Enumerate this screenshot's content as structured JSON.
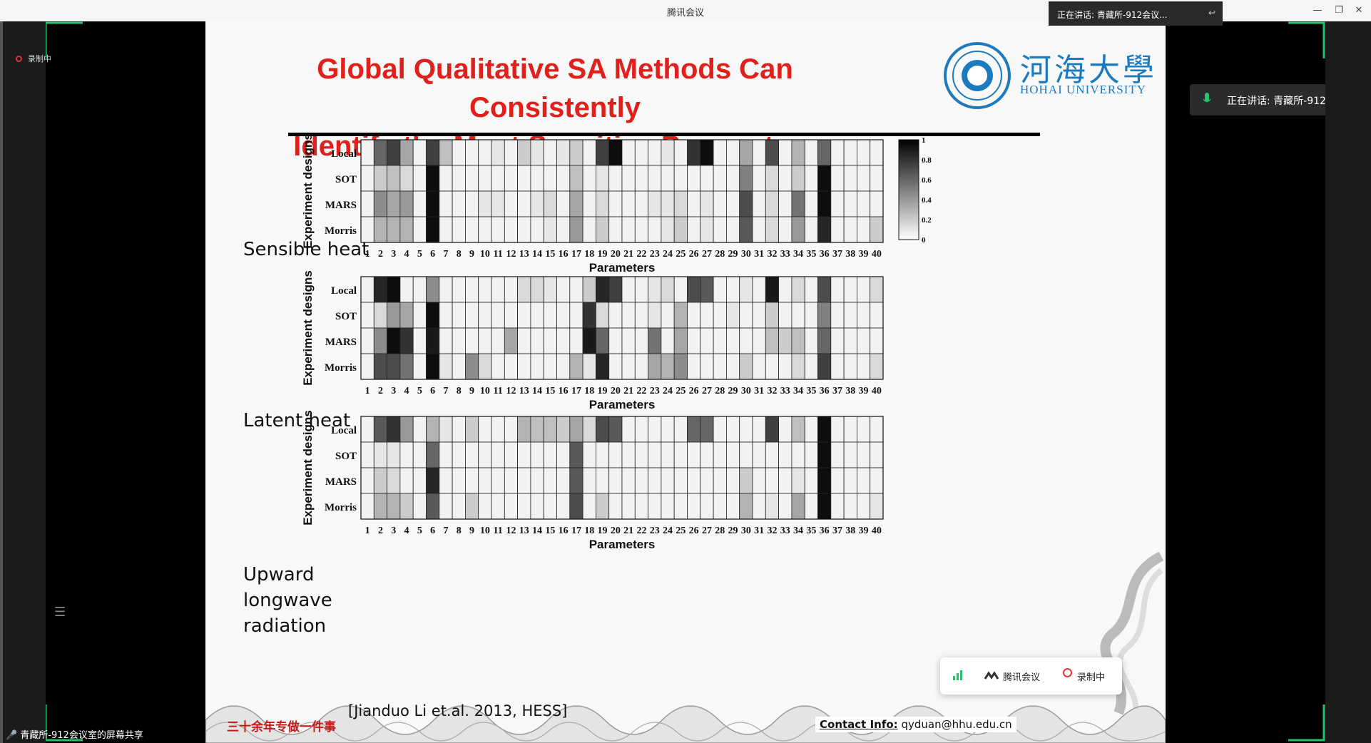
{
  "window": {
    "title": "腾讯会议",
    "minimize": "—",
    "restore": "❐",
    "close": "✕"
  },
  "recording": {
    "label": "录制中"
  },
  "speaker_popup": {
    "text": "正在讲话: 青藏所-912会议..."
  },
  "speaker_badge": {
    "text": "正在讲话: 青藏所-912"
  },
  "share_status": {
    "text": "青藏所-912会议室的屏幕共享"
  },
  "meeting_toolbar": {
    "app": "腾讯会议",
    "record": "录制中"
  },
  "slide": {
    "title_line1": "Global Qualitative SA Methods Can Consistently",
    "title_line2": "Identify the Most Sensitive Parameters",
    "logo_zh": "河海大學",
    "logo_en": "HOHAI UNIVERSITY",
    "slogan": "三十余年专做一件事",
    "citation": "[Jianduo Li et.al. 2013, HESS]",
    "contact_label": "Contact Info:",
    "contact_email": "qyduan@hhu.edu.cn",
    "rows": [
      "Sensible heat",
      "Latent heat",
      "Upward longwave radiation"
    ]
  },
  "chart_data": {
    "type": "heatmap",
    "panels": [
      {
        "name": "Sensible heat",
        "ylabel": "Experiment designs",
        "xlabel": "Parameters",
        "rows": [
          "Local",
          "SOT",
          "MARS",
          "Morris"
        ],
        "x": [
          1,
          2,
          3,
          4,
          5,
          6,
          7,
          8,
          9,
          10,
          11,
          12,
          13,
          14,
          15,
          16,
          17,
          18,
          19,
          20,
          21,
          22,
          23,
          24,
          25,
          26,
          27,
          28,
          29,
          30,
          31,
          32,
          33,
          34,
          35,
          36,
          37,
          38,
          39,
          40
        ],
        "values": [
          [
            0.05,
            0.6,
            0.75,
            0.35,
            0.05,
            0.75,
            0.25,
            0.05,
            0.05,
            0.05,
            0.1,
            0.05,
            0.2,
            0.1,
            0.05,
            0.1,
            0.2,
            0.05,
            0.75,
            0.95,
            0.05,
            0.05,
            0.05,
            0.1,
            0.05,
            0.8,
            0.95,
            0.05,
            0.05,
            0.35,
            0.05,
            0.7,
            0.05,
            0.3,
            0.05,
            0.6,
            0.05,
            0.05,
            0.05,
            0.05
          ],
          [
            0.05,
            0.2,
            0.25,
            0.15,
            0.05,
            0.95,
            0.05,
            0.05,
            0.05,
            0.05,
            0.05,
            0.05,
            0.05,
            0.05,
            0.05,
            0.05,
            0.25,
            0.05,
            0.1,
            0.05,
            0.05,
            0.05,
            0.05,
            0.05,
            0.05,
            0.05,
            0.05,
            0.05,
            0.05,
            0.5,
            0.05,
            0.15,
            0.05,
            0.2,
            0.05,
            0.95,
            0.05,
            0.05,
            0.05,
            0.05
          ],
          [
            0.05,
            0.45,
            0.35,
            0.4,
            0.05,
            0.95,
            0.05,
            0.05,
            0.05,
            0.1,
            0.1,
            0.05,
            0.05,
            0.1,
            0.15,
            0.05,
            0.35,
            0.05,
            0.15,
            0.05,
            0.05,
            0.05,
            0.1,
            0.1,
            0.15,
            0.05,
            0.1,
            0.05,
            0.05,
            0.7,
            0.05,
            0.15,
            0.05,
            0.55,
            0.05,
            0.95,
            0.05,
            0.05,
            0.05,
            0.05
          ],
          [
            0.05,
            0.3,
            0.3,
            0.3,
            0.05,
            0.95,
            0.05,
            0.05,
            0.05,
            0.05,
            0.05,
            0.05,
            0.05,
            0.05,
            0.1,
            0.05,
            0.4,
            0.05,
            0.2,
            0.05,
            0.05,
            0.05,
            0.05,
            0.1,
            0.2,
            0.05,
            0.1,
            0.05,
            0.05,
            0.65,
            0.05,
            0.15,
            0.05,
            0.4,
            0.05,
            0.85,
            0.05,
            0.05,
            0.05,
            0.2
          ]
        ]
      },
      {
        "name": "Latent heat",
        "ylabel": "Experiment designs",
        "xlabel": "Parameters",
        "rows": [
          "Local",
          "SOT",
          "MARS",
          "Morris"
        ],
        "x": [
          1,
          2,
          3,
          4,
          5,
          6,
          7,
          8,
          9,
          10,
          11,
          12,
          13,
          14,
          15,
          16,
          17,
          18,
          19,
          20,
          21,
          22,
          23,
          24,
          25,
          26,
          27,
          28,
          29,
          30,
          31,
          32,
          33,
          34,
          35,
          36,
          37,
          38,
          39,
          40
        ],
        "values": [
          [
            0.05,
            0.85,
            0.95,
            0.05,
            0.05,
            0.45,
            0.05,
            0.05,
            0.05,
            0.05,
            0.05,
            0.05,
            0.15,
            0.15,
            0.1,
            0.05,
            0.05,
            0.2,
            0.85,
            0.75,
            0.05,
            0.05,
            0.1,
            0.15,
            0.05,
            0.7,
            0.65,
            0.05,
            0.05,
            0.1,
            0.05,
            0.9,
            0.05,
            0.15,
            0.05,
            0.7,
            0.05,
            0.05,
            0.05,
            0.15
          ],
          [
            0.05,
            0.15,
            0.4,
            0.35,
            0.05,
            0.95,
            0.05,
            0.05,
            0.05,
            0.05,
            0.05,
            0.05,
            0.05,
            0.05,
            0.05,
            0.05,
            0.05,
            0.8,
            0.15,
            0.05,
            0.05,
            0.05,
            0.1,
            0.05,
            0.3,
            0.05,
            0.05,
            0.05,
            0.1,
            0.05,
            0.05,
            0.2,
            0.05,
            0.05,
            0.05,
            0.5,
            0.05,
            0.05,
            0.05,
            0.05
          ],
          [
            0.05,
            0.45,
            0.95,
            0.8,
            0.05,
            0.9,
            0.05,
            0.05,
            0.05,
            0.05,
            0.05,
            0.35,
            0.05,
            0.05,
            0.05,
            0.05,
            0.05,
            0.9,
            0.6,
            0.05,
            0.05,
            0.05,
            0.55,
            0.05,
            0.35,
            0.05,
            0.05,
            0.05,
            0.05,
            0.05,
            0.05,
            0.25,
            0.2,
            0.25,
            0.05,
            0.6,
            0.05,
            0.05,
            0.05,
            0.05
          ],
          [
            0.05,
            0.7,
            0.7,
            0.55,
            0.05,
            0.95,
            0.1,
            0.05,
            0.45,
            0.15,
            0.05,
            0.05,
            0.05,
            0.05,
            0.05,
            0.05,
            0.3,
            0.1,
            0.85,
            0.05,
            0.05,
            0.05,
            0.35,
            0.3,
            0.45,
            0.05,
            0.05,
            0.05,
            0.05,
            0.2,
            0.05,
            0.05,
            0.05,
            0.15,
            0.05,
            0.75,
            0.05,
            0.05,
            0.05,
            0.15
          ]
        ]
      },
      {
        "name": "Upward longwave radiation",
        "ylabel": "Experiment designs",
        "xlabel": "Parameters",
        "rows": [
          "Local",
          "SOT",
          "MARS",
          "Morris"
        ],
        "x": [
          1,
          2,
          3,
          4,
          5,
          6,
          7,
          8,
          9,
          10,
          11,
          12,
          13,
          14,
          15,
          16,
          17,
          18,
          19,
          20,
          21,
          22,
          23,
          24,
          25,
          26,
          27,
          28,
          29,
          30,
          31,
          32,
          33,
          34,
          35,
          36,
          37,
          38,
          39,
          40
        ],
        "values": [
          [
            0.05,
            0.65,
            0.8,
            0.4,
            0.05,
            0.3,
            0.1,
            0.05,
            0.2,
            0.05,
            0.05,
            0.05,
            0.3,
            0.25,
            0.25,
            0.2,
            0.35,
            0.15,
            0.7,
            0.65,
            0.05,
            0.05,
            0.05,
            0.05,
            0.05,
            0.6,
            0.6,
            0.05,
            0.05,
            0.05,
            0.05,
            0.75,
            0.05,
            0.25,
            0.05,
            0.95,
            0.05,
            0.05,
            0.05,
            0.05
          ],
          [
            0.05,
            0.1,
            0.1,
            0.05,
            0.05,
            0.6,
            0.05,
            0.05,
            0.05,
            0.05,
            0.05,
            0.05,
            0.05,
            0.05,
            0.05,
            0.05,
            0.65,
            0.05,
            0.05,
            0.05,
            0.05,
            0.05,
            0.05,
            0.05,
            0.05,
            0.05,
            0.05,
            0.05,
            0.05,
            0.05,
            0.05,
            0.05,
            0.05,
            0.05,
            0.05,
            0.95,
            0.05,
            0.05,
            0.05,
            0.05
          ],
          [
            0.05,
            0.2,
            0.15,
            0.05,
            0.05,
            0.85,
            0.05,
            0.05,
            0.05,
            0.05,
            0.05,
            0.05,
            0.05,
            0.05,
            0.05,
            0.05,
            0.65,
            0.05,
            0.05,
            0.05,
            0.05,
            0.05,
            0.05,
            0.05,
            0.05,
            0.05,
            0.05,
            0.05,
            0.05,
            0.2,
            0.05,
            0.05,
            0.05,
            0.1,
            0.05,
            0.95,
            0.05,
            0.05,
            0.05,
            0.05
          ],
          [
            0.05,
            0.3,
            0.3,
            0.2,
            0.05,
            0.65,
            0.05,
            0.05,
            0.2,
            0.05,
            0.05,
            0.05,
            0.05,
            0.05,
            0.05,
            0.05,
            0.7,
            0.05,
            0.2,
            0.05,
            0.05,
            0.05,
            0.05,
            0.05,
            0.05,
            0.05,
            0.05,
            0.05,
            0.05,
            0.3,
            0.05,
            0.1,
            0.05,
            0.35,
            0.05,
            0.95,
            0.05,
            0.05,
            0.05,
            0.1
          ]
        ]
      }
    ],
    "colorbar": {
      "min": 0,
      "max": 1,
      "ticks": [
        "1",
        "0.8",
        "0.6",
        "0.4",
        "0.2",
        "0"
      ]
    }
  }
}
